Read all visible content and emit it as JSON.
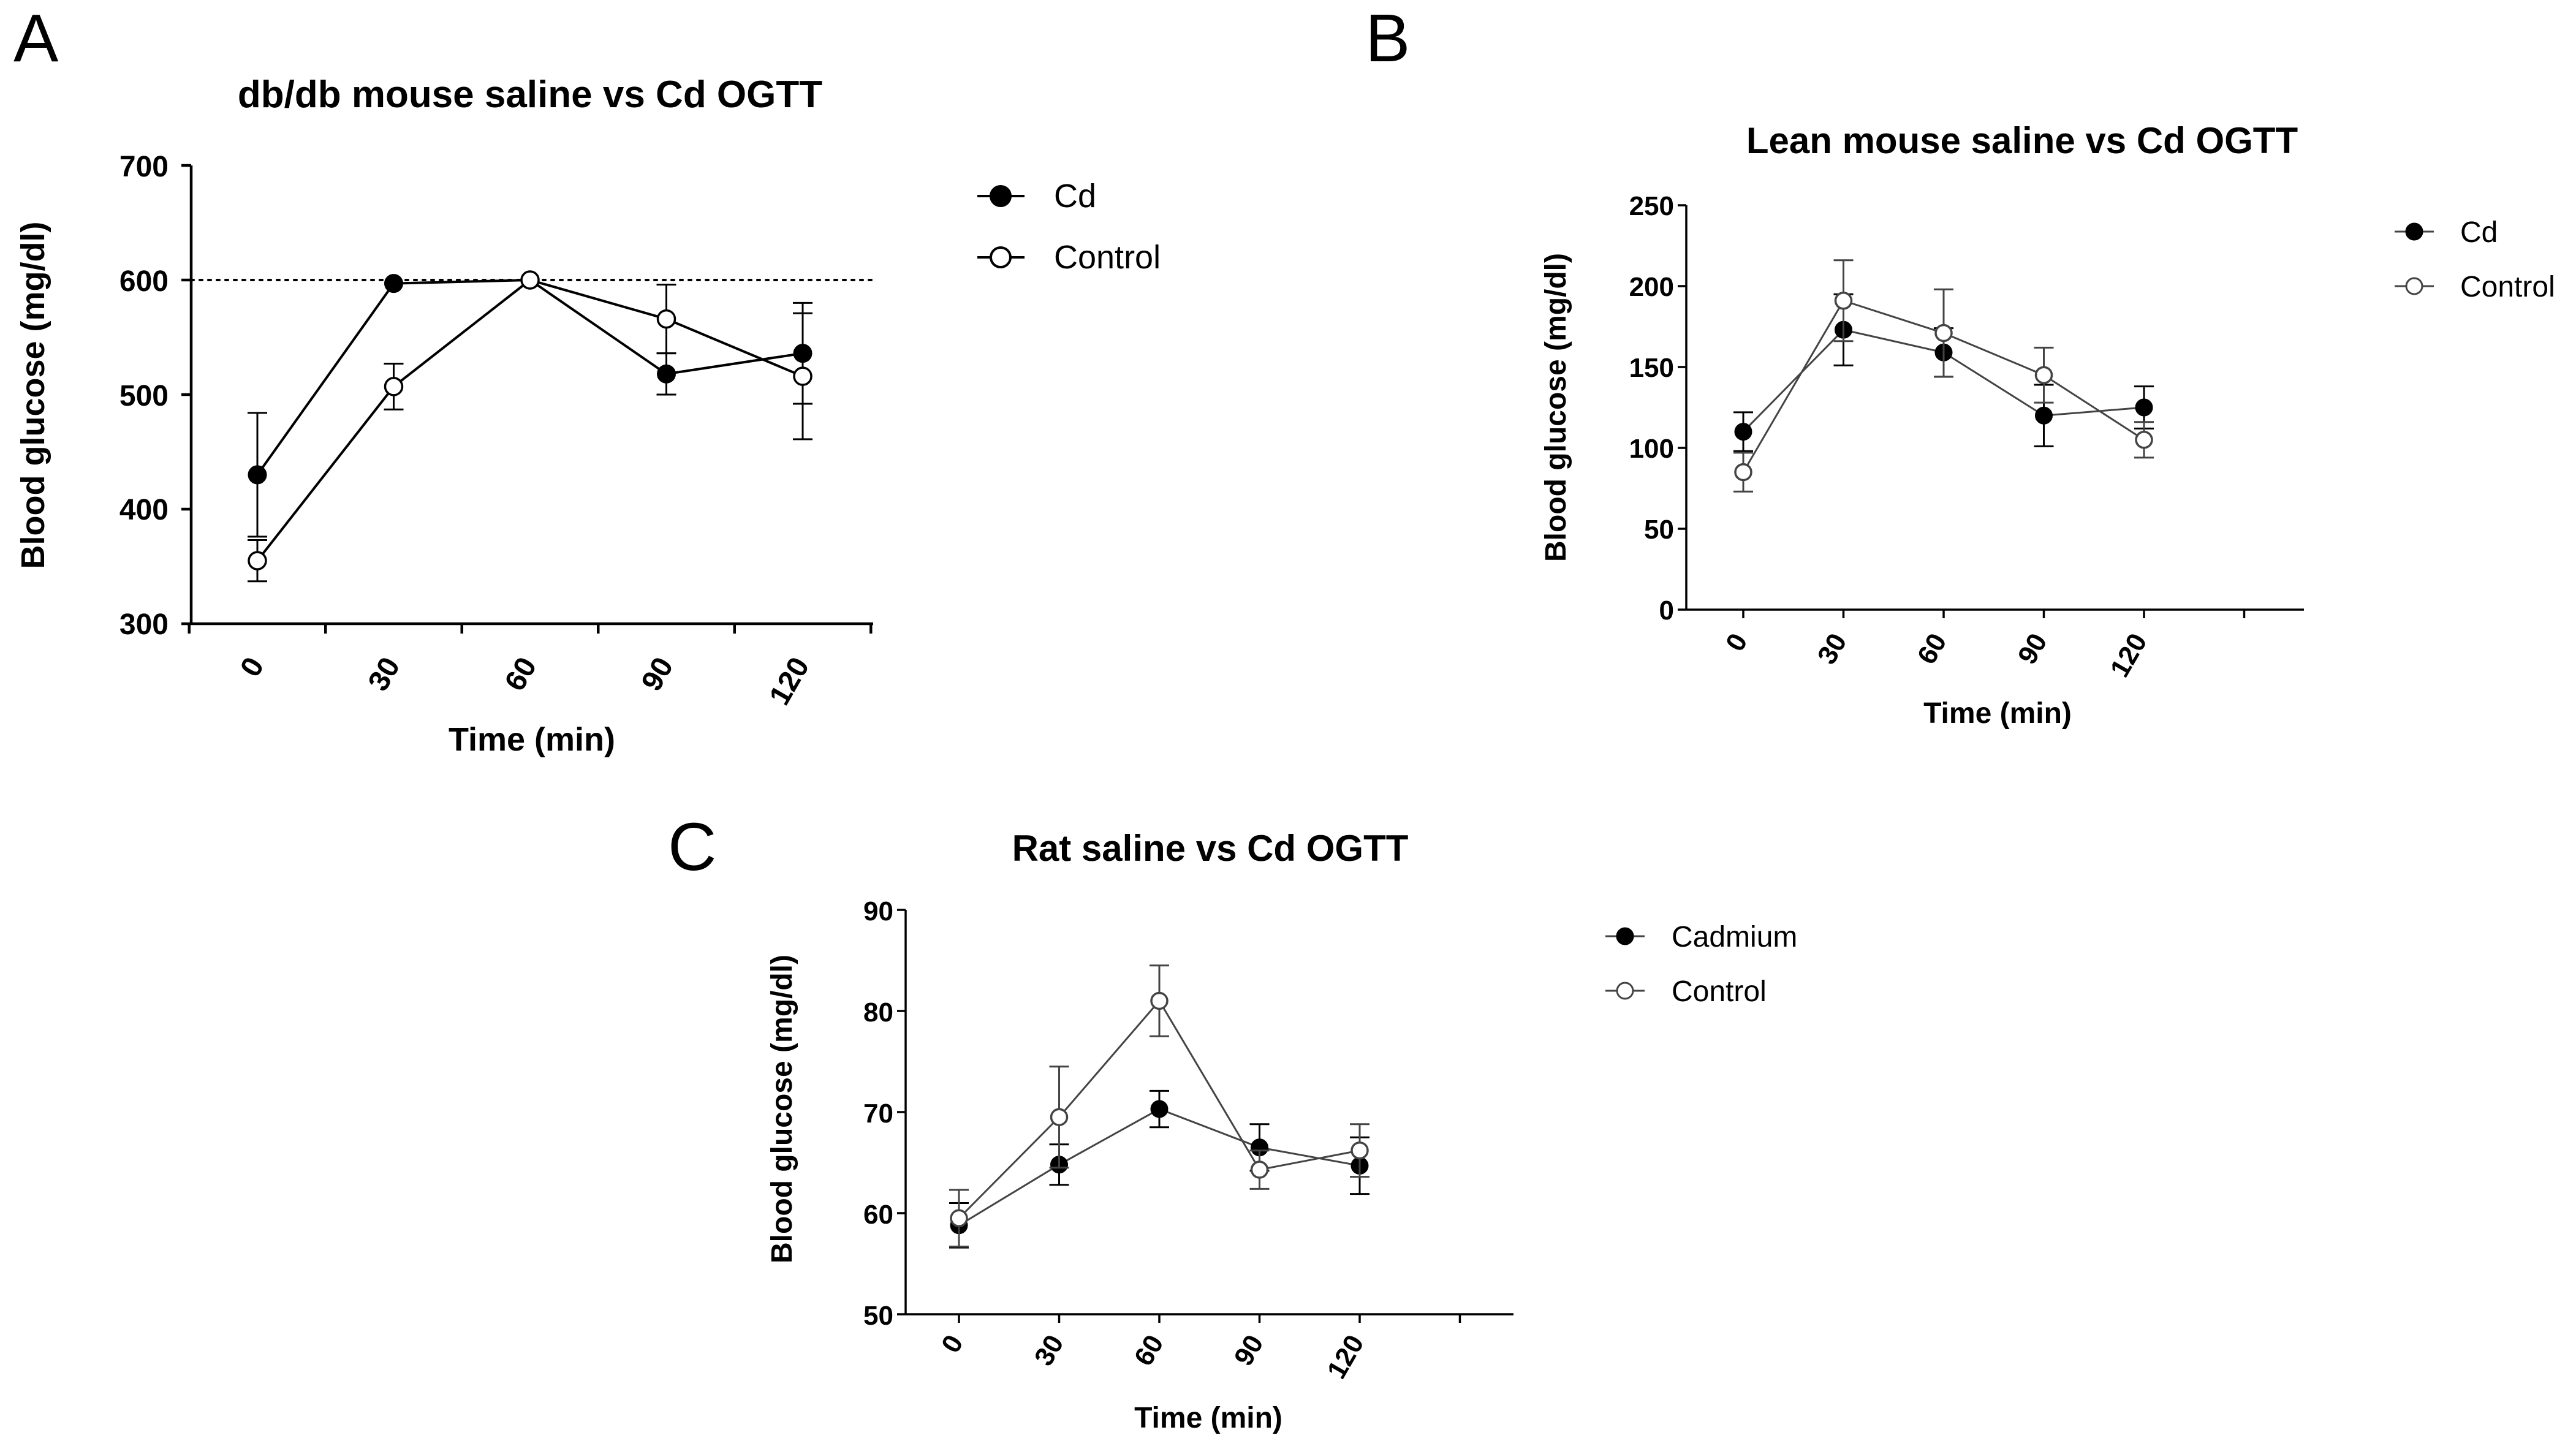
{
  "panels": {
    "a": {
      "letter": "A"
    },
    "b": {
      "letter": "B"
    },
    "c": {
      "letter": "C"
    }
  },
  "chart_data": [
    {
      "type": "line",
      "panel": "A",
      "title": "db/db mouse saline vs Cd OGTT",
      "xlabel": "Time (min)",
      "ylabel": "Blood glucose (mg/dl)",
      "categories": [
        "0",
        "30",
        "60",
        "90",
        "120"
      ],
      "x": [
        0,
        30,
        60,
        90,
        120
      ],
      "ylim": [
        300,
        700
      ],
      "yticks": [
        300,
        400,
        500,
        600,
        700
      ],
      "yticklabels": [
        "300",
        "400",
        "500",
        "600",
        "700"
      ],
      "reference_line": 600,
      "legend_position": "right",
      "series": [
        {
          "name": "Cd",
          "marker": "filled",
          "values": [
            430,
            597,
            600,
            518,
            536
          ],
          "error": [
            54,
            0,
            0,
            18,
            44
          ]
        },
        {
          "name": "Control",
          "marker": "open",
          "values": [
            355,
            507,
            600,
            566,
            516
          ],
          "error": [
            18,
            20,
            0,
            30,
            55
          ]
        }
      ]
    },
    {
      "type": "line",
      "panel": "B",
      "title": "Lean mouse saline vs Cd OGTT",
      "xlabel": "Time (min)",
      "ylabel": "Blood glucose (mg/dl)",
      "categories": [
        "0",
        "30",
        "60",
        "90",
        "120"
      ],
      "x": [
        0,
        30,
        60,
        90,
        120
      ],
      "ylim": [
        0,
        250
      ],
      "xmax_slot": 5,
      "yticks": [
        0,
        50,
        100,
        150,
        200,
        250
      ],
      "yticklabels": [
        "0",
        "50",
        "100",
        "150",
        "200",
        "250"
      ],
      "legend_position": "right",
      "series": [
        {
          "name": "Cd",
          "marker": "filled",
          "values": [
            110,
            173,
            159,
            120,
            125
          ],
          "error": [
            12,
            22,
            15,
            19,
            13
          ]
        },
        {
          "name": "Control",
          "marker": "open",
          "values": [
            85,
            191,
            171,
            145,
            105
          ],
          "error": [
            12,
            25,
            27,
            17,
            11
          ]
        }
      ]
    },
    {
      "type": "line",
      "panel": "C",
      "title": "Rat saline vs Cd OGTT",
      "xlabel": "Time (min)",
      "ylabel": "Blood glucose (mg/dl)",
      "categories": [
        "0",
        "30",
        "60",
        "90",
        "120"
      ],
      "x": [
        0,
        30,
        60,
        90,
        120
      ],
      "ylim": [
        50,
        90
      ],
      "xmax_slot": 5,
      "yticks": [
        50,
        60,
        70,
        80,
        90
      ],
      "yticklabels": [
        "50",
        "60",
        "70",
        "80",
        "90"
      ],
      "legend_position": "right",
      "series": [
        {
          "name": "Cadmium",
          "marker": "filled",
          "values": [
            58.8,
            64.8,
            70.3,
            66.5,
            64.7
          ],
          "error": [
            2.2,
            2.0,
            1.8,
            2.3,
            2.8
          ]
        },
        {
          "name": "Control",
          "marker": "open",
          "values": [
            59.5,
            69.5,
            81.0,
            64.3,
            66.2
          ],
          "error": [
            2.8,
            5.0,
            3.5,
            1.9,
            2.6
          ]
        }
      ]
    }
  ]
}
